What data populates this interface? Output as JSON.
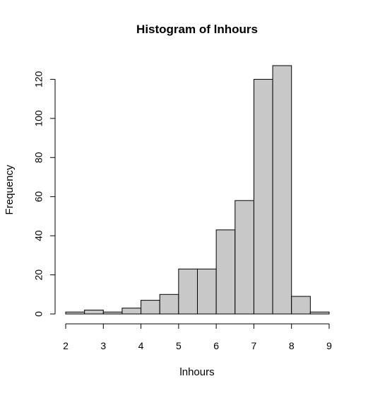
{
  "chart_data": {
    "type": "bar",
    "title": "Histogram of lnhours",
    "xlabel": "lnhours",
    "ylabel": "Frequency",
    "bin_edges": [
      2,
      2.5,
      3,
      3.5,
      4,
      4.5,
      5,
      5.5,
      6,
      6.5,
      7,
      7.5,
      8,
      8.5,
      9
    ],
    "values": [
      1,
      2,
      1,
      3,
      7,
      10,
      23,
      23,
      43,
      58,
      120,
      127,
      9,
      1
    ],
    "xlim": [
      2,
      9
    ],
    "ylim": [
      0,
      127
    ],
    "x_ticks": [
      "2",
      "3",
      "4",
      "5",
      "6",
      "7",
      "8",
      "9"
    ],
    "y_ticks": [
      "0",
      "20",
      "40",
      "60",
      "80",
      "100",
      "120"
    ],
    "bar_color": "#c8c8c8",
    "edge_color": "#000000",
    "grid": false
  }
}
